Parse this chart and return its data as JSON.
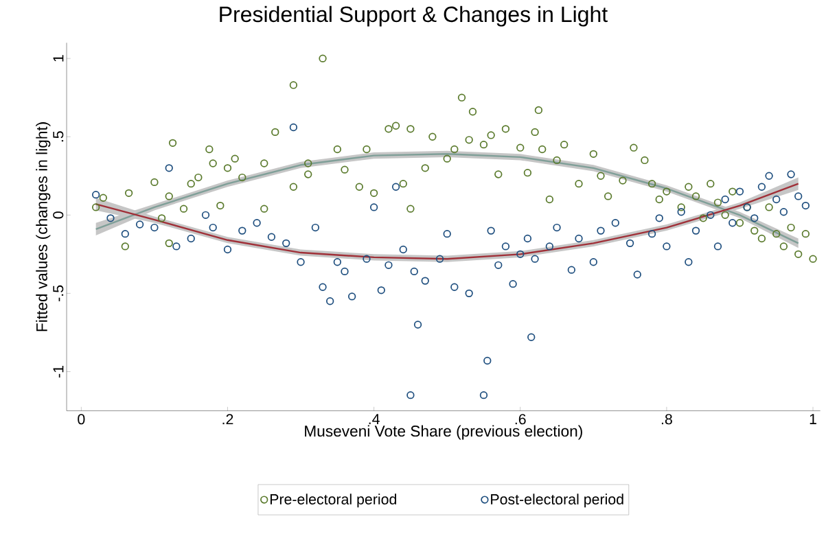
{
  "chart_data": {
    "type": "scatter",
    "title": "Presidential Support & Changes in Light",
    "xlabel": "Museveni Vote Share (previous election)",
    "ylabel": "Fitted values (changes in light)",
    "xlim": [
      -0.02,
      1.01
    ],
    "ylim": [
      -1.25,
      1.1
    ],
    "xticks": [
      0,
      {
        "value": 0.2,
        "label": ".2"
      },
      {
        "value": 0.4,
        "label": ".4"
      },
      {
        "value": 0.6,
        "label": ".6"
      },
      {
        "value": 0.8,
        "label": ".8"
      },
      1
    ],
    "yticks": [
      -1,
      {
        "value": -0.5,
        "label": "-.5"
      },
      0,
      {
        "value": 0.5,
        "label": ".5"
      },
      1
    ],
    "legend": "bottom",
    "grid": false,
    "series": [
      {
        "name": "Pre-electoral period",
        "marker": "circle",
        "color": "#5a7a2c",
        "x": [
          0.02,
          0.03,
          0.06,
          0.065,
          0.1,
          0.11,
          0.12,
          0.12,
          0.125,
          0.14,
          0.15,
          0.16,
          0.175,
          0.18,
          0.19,
          0.2,
          0.21,
          0.22,
          0.25,
          0.25,
          0.265,
          0.29,
          0.29,
          0.31,
          0.31,
          0.33,
          0.35,
          0.36,
          0.38,
          0.39,
          0.4,
          0.42,
          0.43,
          0.44,
          0.45,
          0.45,
          0.47,
          0.48,
          0.5,
          0.51,
          0.52,
          0.53,
          0.535,
          0.55,
          0.56,
          0.57,
          0.58,
          0.6,
          0.61,
          0.62,
          0.625,
          0.63,
          0.64,
          0.65,
          0.66,
          0.68,
          0.7,
          0.71,
          0.72,
          0.74,
          0.755,
          0.77,
          0.78,
          0.79,
          0.8,
          0.82,
          0.83,
          0.84,
          0.85,
          0.86,
          0.87,
          0.88,
          0.89,
          0.9,
          0.91,
          0.92,
          0.93,
          0.94,
          0.95,
          0.96,
          0.97,
          0.98,
          0.99,
          1.0
        ],
        "values": [
          0.05,
          0.11,
          -0.2,
          0.14,
          0.21,
          -0.02,
          -0.18,
          0.12,
          0.46,
          0.04,
          0.2,
          0.24,
          0.42,
          0.33,
          0.06,
          0.3,
          0.36,
          0.24,
          0.33,
          0.04,
          0.53,
          0.83,
          0.18,
          0.26,
          0.33,
          1.0,
          0.42,
          0.29,
          0.18,
          0.42,
          0.14,
          0.55,
          0.57,
          0.2,
          0.04,
          0.55,
          0.3,
          0.5,
          0.36,
          0.42,
          0.75,
          0.48,
          0.66,
          0.45,
          0.51,
          0.26,
          0.55,
          0.43,
          0.27,
          0.53,
          0.67,
          0.42,
          0.1,
          0.35,
          0.45,
          0.2,
          0.39,
          0.25,
          0.12,
          0.22,
          0.43,
          0.35,
          0.2,
          0.1,
          0.15,
          0.05,
          0.18,
          0.12,
          -0.02,
          0.2,
          0.08,
          0.0,
          0.15,
          -0.05,
          0.05,
          -0.1,
          -0.15,
          0.05,
          -0.12,
          -0.2,
          -0.08,
          -0.25,
          -0.12,
          -0.28
        ]
      },
      {
        "name": "Post-electoral period",
        "marker": "circle",
        "color": "#1f4f7f",
        "x": [
          0.02,
          0.04,
          0.06,
          0.08,
          0.1,
          0.12,
          0.13,
          0.15,
          0.17,
          0.18,
          0.2,
          0.22,
          0.24,
          0.26,
          0.28,
          0.29,
          0.3,
          0.32,
          0.33,
          0.34,
          0.35,
          0.36,
          0.37,
          0.39,
          0.4,
          0.41,
          0.42,
          0.43,
          0.44,
          0.45,
          0.455,
          0.46,
          0.47,
          0.49,
          0.5,
          0.51,
          0.53,
          0.55,
          0.555,
          0.56,
          0.57,
          0.58,
          0.59,
          0.6,
          0.61,
          0.615,
          0.62,
          0.64,
          0.65,
          0.67,
          0.68,
          0.7,
          0.71,
          0.73,
          0.75,
          0.76,
          0.78,
          0.79,
          0.8,
          0.82,
          0.83,
          0.84,
          0.86,
          0.87,
          0.88,
          0.89,
          0.9,
          0.91,
          0.92,
          0.93,
          0.94,
          0.95,
          0.96,
          0.97,
          0.98,
          0.99
        ],
        "values": [
          0.13,
          -0.02,
          -0.12,
          -0.06,
          -0.08,
          0.3,
          -0.2,
          -0.15,
          0.0,
          -0.08,
          -0.22,
          -0.1,
          -0.05,
          -0.14,
          -0.18,
          0.56,
          -0.3,
          -0.08,
          -0.46,
          -0.55,
          -0.3,
          -0.36,
          -0.52,
          -0.28,
          0.05,
          -0.48,
          -0.32,
          0.18,
          -0.22,
          -1.15,
          -0.36,
          -0.7,
          -0.42,
          -0.28,
          -0.12,
          -0.46,
          -0.5,
          -1.15,
          -0.93,
          -0.1,
          -0.32,
          -0.2,
          -0.44,
          -0.25,
          -0.15,
          -0.78,
          -0.28,
          -0.2,
          -0.08,
          -0.35,
          -0.15,
          -0.3,
          -0.1,
          -0.05,
          -0.18,
          -0.38,
          -0.12,
          -0.02,
          -0.2,
          0.02,
          -0.3,
          -0.1,
          0.0,
          -0.2,
          0.1,
          -0.05,
          0.15,
          0.05,
          -0.02,
          0.18,
          0.25,
          0.1,
          0.02,
          0.26,
          0.12,
          0.06
        ]
      },
      {
        "type": "line",
        "color": "#7f9f98",
        "x": [
          0.02,
          0.1,
          0.2,
          0.3,
          0.4,
          0.5,
          0.6,
          0.7,
          0.8,
          0.9,
          0.98
        ],
        "values": [
          -0.09,
          0.05,
          0.2,
          0.32,
          0.38,
          0.39,
          0.37,
          0.3,
          0.17,
          0.0,
          -0.18
        ],
        "lower": [
          -0.13,
          0.03,
          0.18,
          0.3,
          0.36,
          0.37,
          0.35,
          0.28,
          0.15,
          -0.02,
          -0.21
        ],
        "upper": [
          -0.05,
          0.07,
          0.22,
          0.34,
          0.4,
          0.41,
          0.39,
          0.32,
          0.19,
          0.02,
          -0.15
        ]
      },
      {
        "type": "line",
        "color": "#a03038",
        "x": [
          0.02,
          0.1,
          0.2,
          0.3,
          0.4,
          0.5,
          0.6,
          0.7,
          0.8,
          0.9,
          0.98
        ],
        "values": [
          0.07,
          -0.03,
          -0.16,
          -0.24,
          -0.27,
          -0.28,
          -0.25,
          -0.18,
          -0.08,
          0.06,
          0.2
        ],
        "lower": [
          0.03,
          -0.05,
          -0.18,
          -0.26,
          -0.29,
          -0.3,
          -0.27,
          -0.2,
          -0.1,
          0.04,
          0.16
        ],
        "upper": [
          0.11,
          -0.01,
          -0.14,
          -0.22,
          -0.25,
          -0.26,
          -0.23,
          -0.16,
          -0.06,
          0.08,
          0.24
        ]
      }
    ]
  }
}
